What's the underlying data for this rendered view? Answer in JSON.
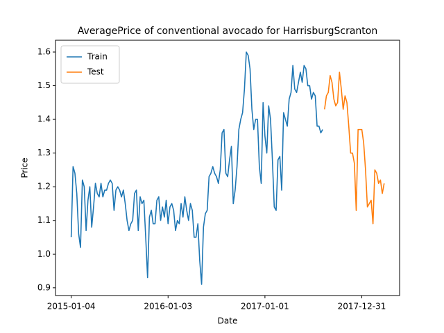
{
  "chart_data": {
    "type": "line",
    "title": "AveragePrice of conventional avocado for HarrisburgScranton",
    "x_label": "Date",
    "y_label": "Price",
    "legend": "upper left",
    "grid": false,
    "xlim": [
      "2014-11-06",
      "2018-05-22"
    ],
    "xticks": [
      "2015-01-04",
      "2016-01-03",
      "2017-01-01",
      "2017-12-31"
    ],
    "ylim": [
      0.877,
      1.635
    ],
    "yticks": [
      0.9,
      {
        "value": 1,
        "label": "1.0"
      },
      1.1,
      1.2,
      1.3,
      1.4,
      1.5,
      1.6
    ],
    "series": [
      {
        "name": "Train",
        "color": "#1f77b4",
        "x": [
          "2015-01-04",
          "2015-01-11",
          "2015-01-18",
          "2015-01-25",
          "2015-02-01",
          "2015-02-08",
          "2015-02-15",
          "2015-02-22",
          "2015-03-01",
          "2015-03-08",
          "2015-03-15",
          "2015-03-22",
          "2015-03-29",
          "2015-04-05",
          "2015-04-12",
          "2015-04-19",
          "2015-04-26",
          "2015-05-03",
          "2015-05-10",
          "2015-05-17",
          "2015-05-24",
          "2015-05-31",
          "2015-06-07",
          "2015-06-14",
          "2015-06-21",
          "2015-06-28",
          "2015-07-05",
          "2015-07-12",
          "2015-07-19",
          "2015-07-26",
          "2015-08-02",
          "2015-08-09",
          "2015-08-16",
          "2015-08-23",
          "2015-08-30",
          "2015-09-06",
          "2015-09-13",
          "2015-09-20",
          "2015-09-27",
          "2015-10-04",
          "2015-10-11",
          "2015-10-18",
          "2015-10-25",
          "2015-11-01",
          "2015-11-08",
          "2015-11-15",
          "2015-11-22",
          "2015-11-29",
          "2015-12-06",
          "2015-12-13",
          "2015-12-20",
          "2015-12-27",
          "2016-01-03",
          "2016-01-10",
          "2016-01-17",
          "2016-01-24",
          "2016-01-31",
          "2016-02-07",
          "2016-02-14",
          "2016-02-21",
          "2016-02-28",
          "2016-03-06",
          "2016-03-13",
          "2016-03-20",
          "2016-03-27",
          "2016-04-03",
          "2016-04-10",
          "2016-04-17",
          "2016-04-24",
          "2016-05-01",
          "2016-05-08",
          "2016-05-15",
          "2016-05-22",
          "2016-05-29",
          "2016-06-05",
          "2016-06-12",
          "2016-06-19",
          "2016-06-26",
          "2016-07-03",
          "2016-07-10",
          "2016-07-17",
          "2016-07-24",
          "2016-07-31",
          "2016-08-07",
          "2016-08-14",
          "2016-08-21",
          "2016-08-28",
          "2016-09-04",
          "2016-09-11",
          "2016-09-18",
          "2016-09-25",
          "2016-10-02",
          "2016-10-09",
          "2016-10-16",
          "2016-10-23",
          "2016-10-30",
          "2016-11-06",
          "2016-11-13",
          "2016-11-20",
          "2016-11-27",
          "2016-12-04",
          "2016-12-11",
          "2016-12-18",
          "2016-12-25",
          "2017-01-01",
          "2017-01-08",
          "2017-01-15",
          "2017-01-22",
          "2017-01-29",
          "2017-02-05",
          "2017-02-12",
          "2017-02-19",
          "2017-02-26",
          "2017-03-05",
          "2017-03-12",
          "2017-03-19",
          "2017-03-26",
          "2017-04-02",
          "2017-04-09",
          "2017-04-16",
          "2017-04-23",
          "2017-04-30",
          "2017-05-07",
          "2017-05-14",
          "2017-05-21",
          "2017-05-28",
          "2017-06-04",
          "2017-06-11",
          "2017-06-18",
          "2017-06-25",
          "2017-07-02",
          "2017-07-09",
          "2017-07-16",
          "2017-07-23",
          "2017-07-30",
          "2017-08-06"
        ],
        "values": [
          1.05,
          1.26,
          1.24,
          1.18,
          1.06,
          1.02,
          1.22,
          1.2,
          1.07,
          1.16,
          1.2,
          1.08,
          1.14,
          1.21,
          1.18,
          1.17,
          1.21,
          1.17,
          1.19,
          1.19,
          1.21,
          1.22,
          1.21,
          1.13,
          1.19,
          1.2,
          1.19,
          1.17,
          1.19,
          1.15,
          1.1,
          1.07,
          1.09,
          1.1,
          1.18,
          1.19,
          1.07,
          1.17,
          1.15,
          1.16,
          1.05,
          0.93,
          1.11,
          1.13,
          1.09,
          1.09,
          1.16,
          1.17,
          1.1,
          1.14,
          1.11,
          1.16,
          1.09,
          1.14,
          1.15,
          1.13,
          1.07,
          1.1,
          1.09,
          1.15,
          1.11,
          1.17,
          1.13,
          1.1,
          1.15,
          1.13,
          1.05,
          1.05,
          1.09,
          0.98,
          0.91,
          1.08,
          1.12,
          1.13,
          1.23,
          1.24,
          1.26,
          1.24,
          1.23,
          1.21,
          1.25,
          1.36,
          1.37,
          1.24,
          1.23,
          1.28,
          1.32,
          1.15,
          1.19,
          1.26,
          1.37,
          1.4,
          1.42,
          1.49,
          1.6,
          1.59,
          1.55,
          1.43,
          1.37,
          1.4,
          1.4,
          1.26,
          1.21,
          1.45,
          1.35,
          1.3,
          1.44,
          1.4,
          1.28,
          1.14,
          1.13,
          1.28,
          1.29,
          1.19,
          1.42,
          1.4,
          1.38,
          1.46,
          1.48,
          1.56,
          1.49,
          1.48,
          1.51,
          1.54,
          1.51,
          1.56,
          1.55,
          1.5,
          1.5,
          1.46,
          1.48,
          1.47,
          1.38,
          1.38,
          1.36,
          1.37
        ]
      },
      {
        "name": "Test",
        "color": "#ff7f0e",
        "x": [
          "2017-08-13",
          "2017-08-20",
          "2017-08-27",
          "2017-09-03",
          "2017-09-10",
          "2017-09-17",
          "2017-09-24",
          "2017-10-01",
          "2017-10-08",
          "2017-10-15",
          "2017-10-22",
          "2017-10-29",
          "2017-11-05",
          "2017-11-12",
          "2017-11-19",
          "2017-11-26",
          "2017-12-03",
          "2017-12-10",
          "2017-12-17",
          "2017-12-24",
          "2017-12-31",
          "2018-01-07",
          "2018-01-14",
          "2018-01-21",
          "2018-01-28",
          "2018-02-04",
          "2018-02-11",
          "2018-02-18",
          "2018-02-25",
          "2018-03-04",
          "2018-03-11",
          "2018-03-18",
          "2018-03-25"
        ],
        "values": [
          1.43,
          1.47,
          1.48,
          1.53,
          1.51,
          1.46,
          1.44,
          1.45,
          1.54,
          1.49,
          1.43,
          1.47,
          1.45,
          1.38,
          1.3,
          1.3,
          1.27,
          1.13,
          1.37,
          1.37,
          1.37,
          1.33,
          1.25,
          1.14,
          1.15,
          1.16,
          1.09,
          1.25,
          1.24,
          1.21,
          1.22,
          1.18,
          1.21
        ]
      }
    ]
  }
}
